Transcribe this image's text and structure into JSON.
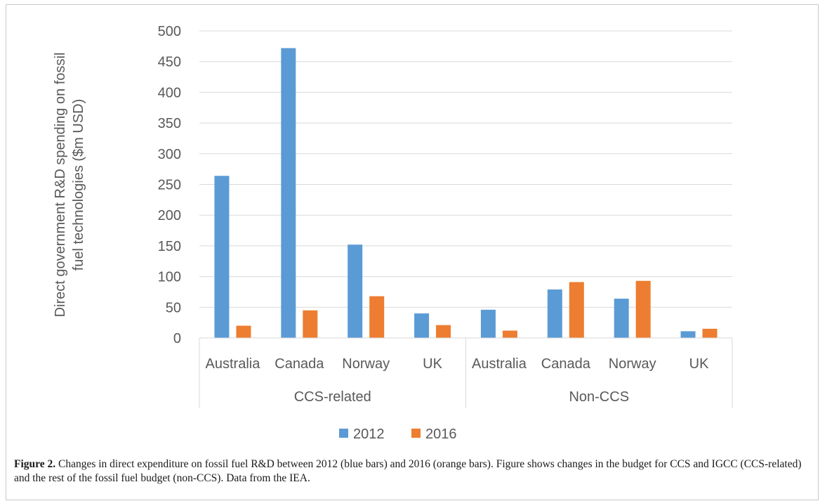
{
  "chart_data": {
    "type": "bar",
    "ylabel_lines": [
      "Direct government R&D spending on fossil",
      "fuel technologies ($m USD)"
    ],
    "ylim": [
      0,
      500
    ],
    "yticks": [
      0,
      50,
      100,
      150,
      200,
      250,
      300,
      350,
      400,
      450,
      500
    ],
    "grid": true,
    "legend_position": "bottom",
    "groups": [
      {
        "label": "CCS-related",
        "categories": [
          "Australia",
          "Canada",
          "Norway",
          "UK"
        ]
      },
      {
        "label": "Non-CCS",
        "categories": [
          "Australia",
          "Canada",
          "Norway",
          "UK"
        ]
      }
    ],
    "series": [
      {
        "name": "2012",
        "color": "#5b9bd5",
        "values": [
          264,
          472,
          152,
          40,
          46,
          79,
          64,
          11
        ]
      },
      {
        "name": "2016",
        "color": "#ed7d31",
        "values": [
          20,
          45,
          68,
          21,
          12,
          91,
          93,
          15
        ]
      }
    ]
  },
  "caption": {
    "label": "Figure 2.",
    "text": " Changes in direct expenditure on fossil fuel R&D between 2012 (blue bars) and 2016 (orange bars). Figure shows changes in the budget for CCS and IGCC (CCS-related) and the rest of the fossil fuel budget (non-CCS). Data from the IEA."
  }
}
